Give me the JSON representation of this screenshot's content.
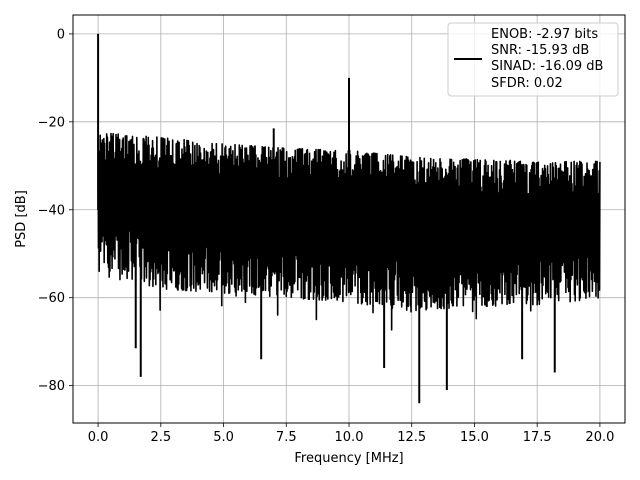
{
  "chart_data": {
    "type": "line",
    "title": "",
    "xlabel": "Frequency [MHz]",
    "ylabel": "PSD [dB]",
    "xlim": [
      -1.0,
      21.0
    ],
    "ylim": [
      -88.5,
      4.3
    ],
    "xticks": [
      0.0,
      2.5,
      5.0,
      7.5,
      10.0,
      12.5,
      15.0,
      17.5,
      20.0
    ],
    "xtick_labels": [
      "0.0",
      "2.5",
      "5.0",
      "7.5",
      "10.0",
      "12.5",
      "15.0",
      "17.5",
      "20.0"
    ],
    "yticks": [
      0,
      -20,
      -40,
      -60,
      -80
    ],
    "ytick_labels": [
      "0",
      "−20",
      "−40",
      "−60",
      "−80"
    ],
    "grid": true,
    "legend_position": "top-right",
    "line_color": "#000000",
    "legend": {
      "lines": [
        "ENOB: -2.97 bits",
        "SNR: -15.93 dB",
        "SINAD: -16.09 dB",
        "SFDR: 0.02"
      ]
    },
    "series": [
      {
        "color": "#000000",
        "description": "noise-like spectrum, upper envelope approx -23 dB at 0 MHz falling to approx -29 dB at 20 MHz, lower envelope approx -52 to -60 dB",
        "peaks": [
          {
            "x": 0.0,
            "y": 0.0
          },
          {
            "x": 10.0,
            "y": -10.0
          },
          {
            "x": 7.0,
            "y": -21.5
          }
        ],
        "dips": [
          {
            "x": 1.7,
            "y": -78.0
          },
          {
            "x": 1.5,
            "y": -71.5
          },
          {
            "x": 6.5,
            "y": -74.0
          },
          {
            "x": 11.4,
            "y": -76.0
          },
          {
            "x": 12.8,
            "y": -84.0
          },
          {
            "x": 13.9,
            "y": -81.0
          },
          {
            "x": 16.9,
            "y": -74.0
          },
          {
            "x": 18.2,
            "y": -77.0
          }
        ],
        "upper_envelope": [
          [
            0.2,
            -22.5
          ],
          [
            2.5,
            -23.5
          ],
          [
            5.0,
            -25.0
          ],
          [
            7.5,
            -26.0
          ],
          [
            10.0,
            -26.5
          ],
          [
            12.5,
            -28.0
          ],
          [
            15.0,
            -28.5
          ],
          [
            17.5,
            -29.0
          ],
          [
            20.0,
            -29.0
          ]
        ],
        "lower_envelope": [
          [
            0.2,
            -55.0
          ],
          [
            2.5,
            -58.0
          ],
          [
            5.0,
            -59.0
          ],
          [
            7.5,
            -60.0
          ],
          [
            10.0,
            -61.0
          ],
          [
            12.5,
            -63.0
          ],
          [
            15.0,
            -62.0
          ],
          [
            17.5,
            -62.0
          ],
          [
            20.0,
            -60.0
          ]
        ]
      }
    ]
  }
}
